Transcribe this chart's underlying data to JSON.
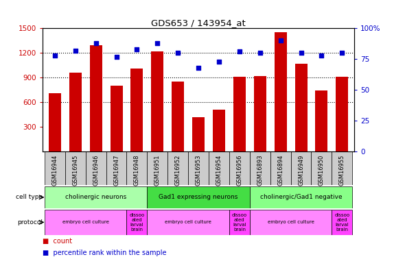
{
  "title": "GDS653 / 143954_at",
  "samples": [
    "GSM16944",
    "GSM16945",
    "GSM16946",
    "GSM16947",
    "GSM16948",
    "GSM16951",
    "GSM16952",
    "GSM16953",
    "GSM16954",
    "GSM16956",
    "GSM16893",
    "GSM16894",
    "GSM16949",
    "GSM16950",
    "GSM16955"
  ],
  "counts": [
    710,
    960,
    1290,
    800,
    1010,
    1220,
    850,
    420,
    510,
    910,
    920,
    1450,
    1070,
    740,
    910
  ],
  "percentiles": [
    78,
    82,
    88,
    77,
    83,
    88,
    80,
    68,
    73,
    81,
    80,
    90,
    80,
    78,
    80
  ],
  "ylim_left": [
    0,
    1500
  ],
  "ylim_right": [
    0,
    100
  ],
  "yticks_left": [
    300,
    600,
    900,
    1200,
    1500
  ],
  "yticks_right": [
    0,
    25,
    50,
    75,
    100
  ],
  "bar_color": "#cc0000",
  "dot_color": "#0000cc",
  "cell_type_groups": [
    {
      "label": "cholinergic neurons",
      "start": 0,
      "end": 5,
      "color": "#aaffaa"
    },
    {
      "label": "Gad1 expressing neurons",
      "start": 5,
      "end": 10,
      "color": "#44dd44"
    },
    {
      "label": "cholinergic/Gad1 negative",
      "start": 10,
      "end": 15,
      "color": "#88ff88"
    }
  ],
  "protocol_groups": [
    {
      "label": "embryo cell culture",
      "start": 0,
      "end": 4,
      "color": "#ff88ff"
    },
    {
      "label": "dissoo\nated\nlarval\nbrain",
      "start": 4,
      "end": 5,
      "color": "#ff44ff"
    },
    {
      "label": "embryo cell culture",
      "start": 5,
      "end": 9,
      "color": "#ff88ff"
    },
    {
      "label": "dissoo\nated\nlarval\nbrain",
      "start": 9,
      "end": 10,
      "color": "#ff44ff"
    },
    {
      "label": "embryo cell culture",
      "start": 10,
      "end": 14,
      "color": "#ff88ff"
    },
    {
      "label": "dissoo\nated\nlarval\nbrain",
      "start": 14,
      "end": 15,
      "color": "#ff44ff"
    }
  ],
  "tick_color_left": "#cc0000",
  "tick_color_right": "#0000cc",
  "bg_color": "#ffffff",
  "sample_bg_color": "#cccccc",
  "grid_dotted_lines": [
    600,
    900,
    1200
  ]
}
